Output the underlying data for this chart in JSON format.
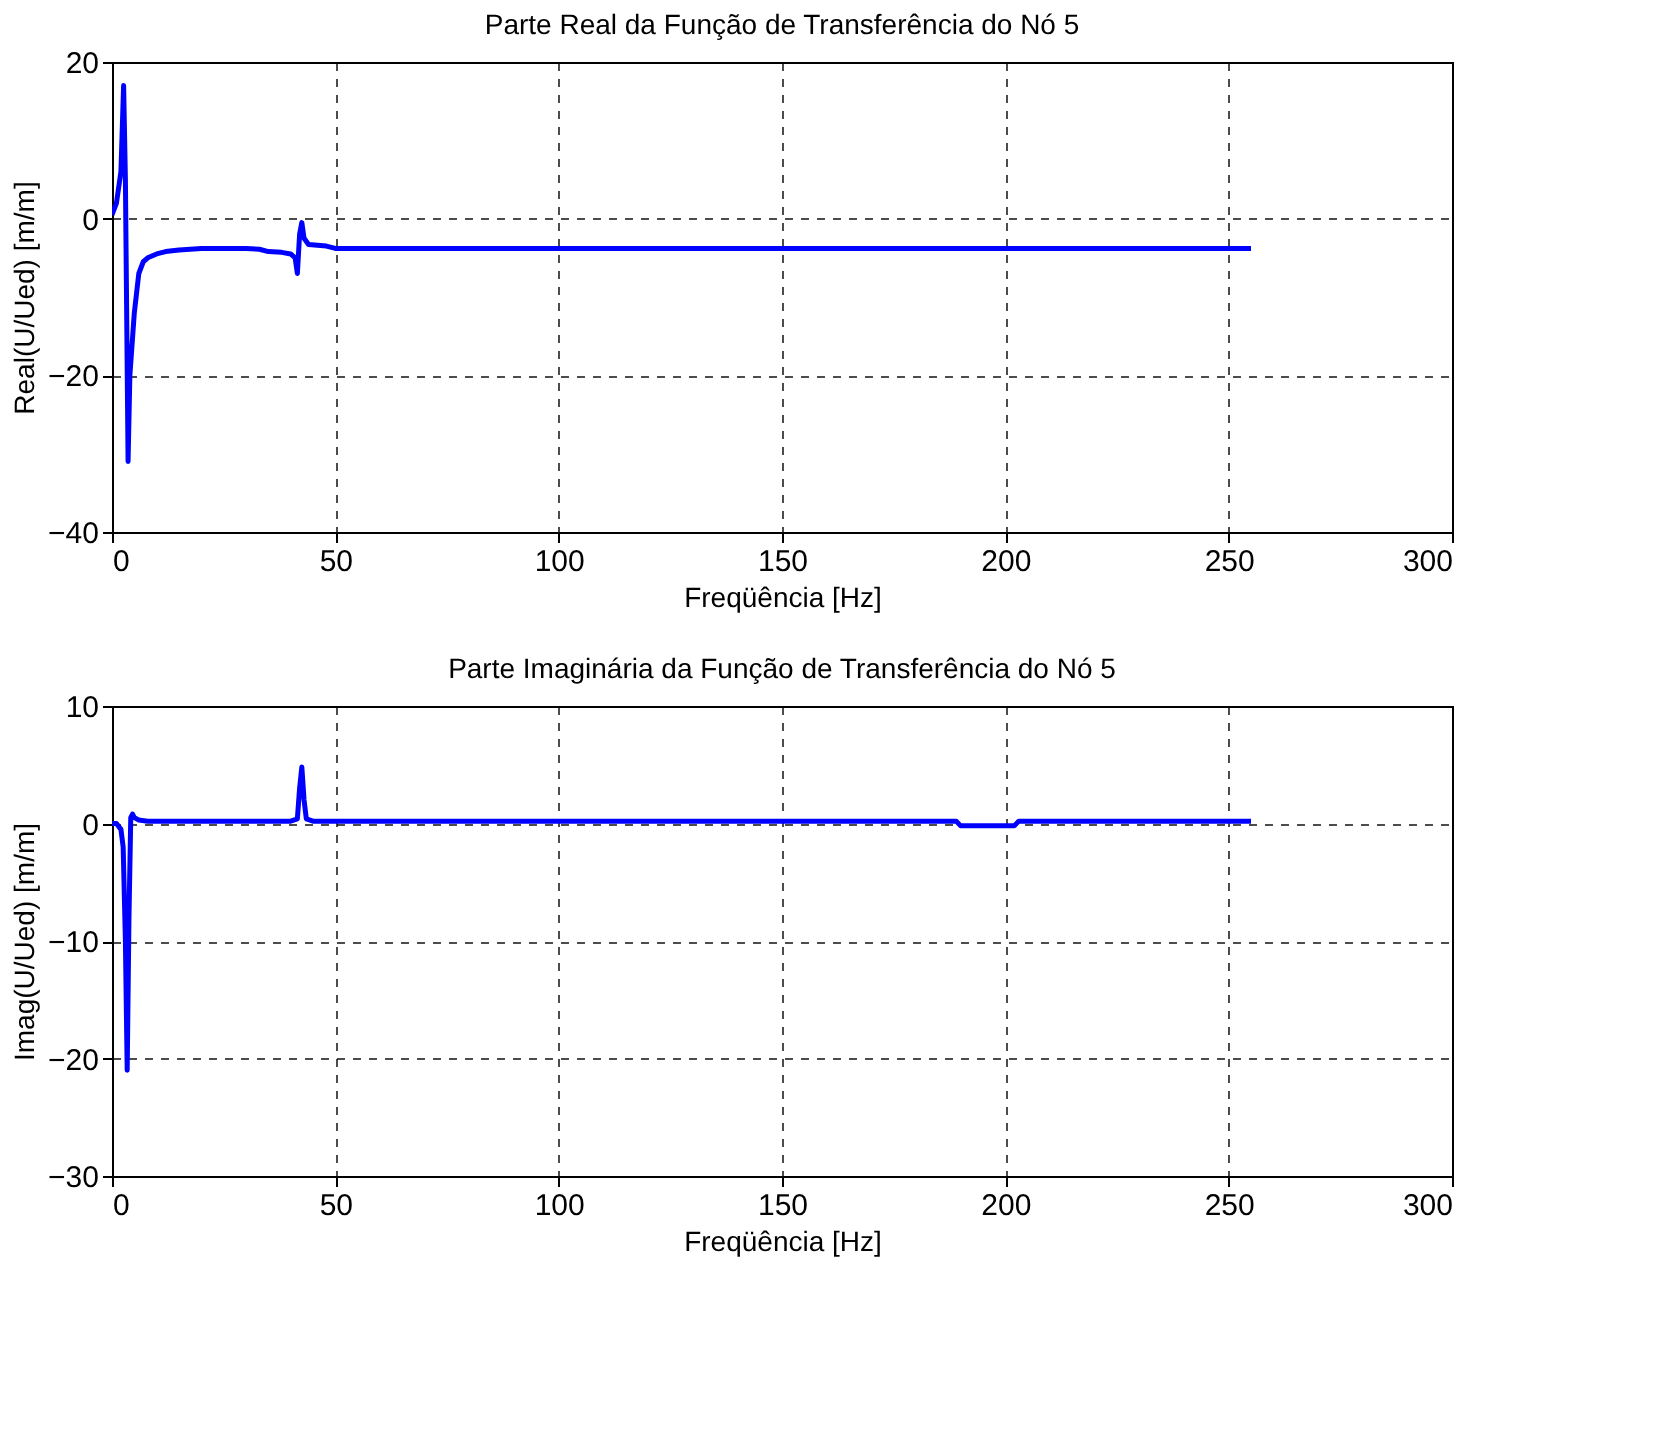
{
  "chart_data": [
    {
      "type": "line",
      "title": "Parte Real da Função de Transferência do Nó 5",
      "xlabel": "Freqüência [Hz]",
      "ylabel": "Real(U/Ued) [m/m]",
      "xlim": [
        0,
        300
      ],
      "xticks": [
        0,
        50,
        100,
        150,
        200,
        250,
        300
      ],
      "ylim": [
        -40,
        20
      ],
      "yticks": [
        -40,
        -20,
        0,
        20
      ],
      "grid": true,
      "line_style": "solid",
      "series": [
        {
          "color": "#0000ff",
          "x": [
            0,
            1,
            2,
            2.6,
            3,
            3.6,
            4,
            5,
            6,
            7,
            8,
            10,
            12,
            15,
            20,
            25,
            30,
            33,
            35,
            38,
            40,
            41,
            41.5,
            42,
            42.5,
            43,
            44,
            46,
            48,
            50,
            60,
            100,
            150,
            200,
            255
          ],
          "values": [
            0.5,
            2,
            6,
            17,
            5,
            -31,
            -20,
            -12,
            -7,
            -5.5,
            -5,
            -4.5,
            -4.2,
            -4,
            -3.8,
            -3.8,
            -3.8,
            -3.9,
            -4.2,
            -4.3,
            -4.5,
            -5,
            -7,
            -2,
            -0.5,
            -2.5,
            -3.3,
            -3.4,
            -3.5,
            -3.8,
            -3.8,
            -3.8,
            -3.8,
            -3.8,
            -3.8
          ]
        }
      ]
    },
    {
      "type": "line",
      "title": "Parte Imaginária da Função de Transferência do Nó 5",
      "xlabel": "Freqüência [Hz]",
      "ylabel": "Imag(U/Ued) [m/m]",
      "xlim": [
        0,
        300
      ],
      "xticks": [
        0,
        50,
        100,
        150,
        200,
        250,
        300
      ],
      "ylim": [
        -30,
        10
      ],
      "yticks": [
        -30,
        -20,
        -10,
        0,
        10
      ],
      "grid": true,
      "line_style": "solid",
      "series": [
        {
          "color": "#0000ff",
          "x": [
            0,
            1,
            2,
            2.5,
            3,
            3.4,
            3.8,
            4.2,
            4.6,
            5,
            6,
            8,
            10,
            20,
            30,
            40,
            41.5,
            42,
            42.5,
            43,
            43.5,
            45,
            60,
            100,
            150,
            189,
            190,
            202,
            203,
            230,
            255
          ],
          "values": [
            0,
            0,
            -0.5,
            -2,
            -10,
            -21,
            -8,
            0.5,
            0.8,
            0.5,
            0.3,
            0.2,
            0.2,
            0.2,
            0.2,
            0.2,
            0.4,
            3,
            4.8,
            2,
            0.4,
            0.2,
            0.2,
            0.2,
            0.2,
            0.2,
            -0.2,
            -0.2,
            0.2,
            0.2,
            0.2
          ]
        }
      ]
    }
  ]
}
